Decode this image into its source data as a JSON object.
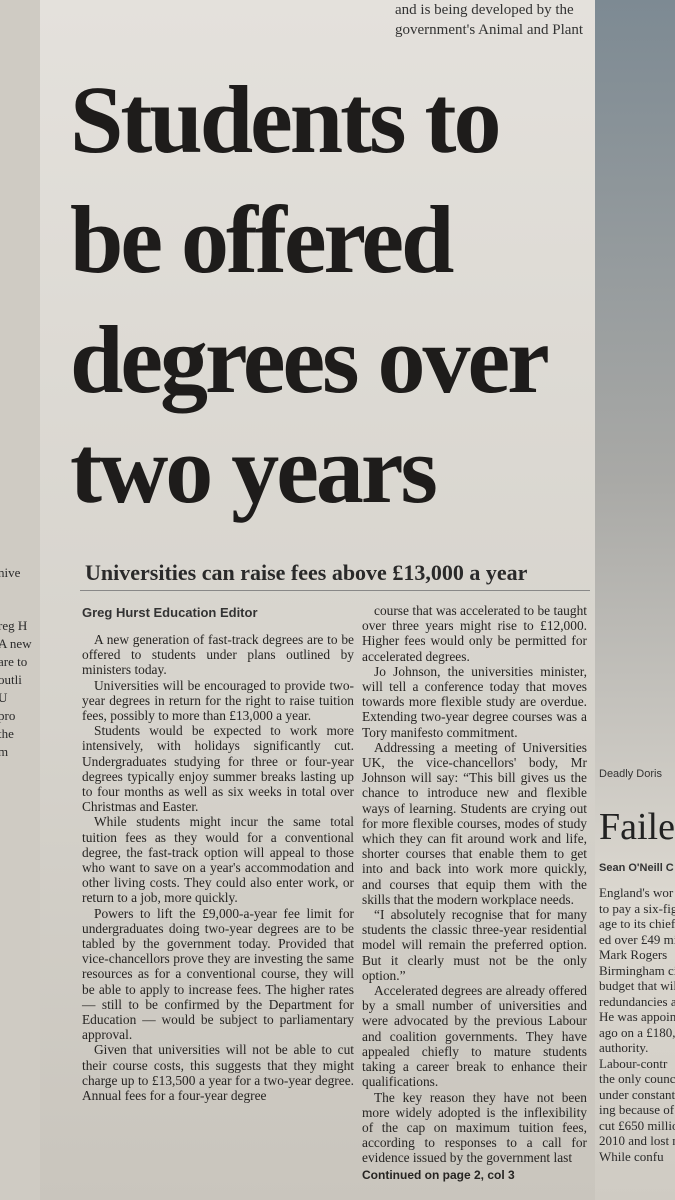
{
  "header": {
    "top_fragment": "and is being developed by the government's Animal and Plant",
    "headline": [
      "Students to",
      "be offered",
      "degrees over",
      "two years"
    ],
    "subhead": "Universities can raise fees above £13,000 a year",
    "byline": "Greg Hurst Education Editor"
  },
  "article": {
    "column1": [
      "A new generation of fast-track degrees are to be offered to students under plans outlined by ministers today.",
      "Universities will be encouraged to provide two-year degrees in return for the right to raise tuition fees, possibly to more than £13,000 a year.",
      "Students would be expected to work more intensively, with holidays significantly cut. Undergraduates studying for three or four-year degrees typically enjoy summer breaks lasting up to four months as well as six weeks in total over Christmas and Easter.",
      "While students might incur the same total tuition fees as they would for a conventional degree, the fast-track option will appeal to those who want to save on a year's accommodation and other living costs. They could also enter work, or return to a job, more quickly.",
      "Powers to lift the £9,000-a-year fee limit for undergraduates doing two-year degrees are to be tabled by the government today. Provided that vice-chancellors prove they are investing the same resources as for a conventional course, they will be able to apply to increase fees. The higher rates — still to be confirmed by the Department for Education — would be subject to parliamentary approval.",
      "Given that universities will not be able to cut their course costs, this suggests that they might charge up to £13,500 a year for a two-year degree. Annual fees for a four-year degree"
    ],
    "column2": [
      "course that was accelerated to be taught over three years might rise to £12,000. Higher fees would only be permitted for accelerated degrees.",
      "Jo Johnson, the universities minister, will tell a conference today that moves towards more flexible study are overdue. Extending two-year degree courses was a Tory manifesto commitment.",
      "Addressing a meeting of Universities UK, the vice-chancellors' body, Mr Johnson will say: “This bill gives us the chance to introduce new and flexible ways of learning. Students are crying out for more flexible courses, modes of study which they can fit around work and life, shorter courses that enable them to get into and back into work more quickly, and courses that equip them with the skills that the modern workplace needs.",
      "“I absolutely recognise that for many students the classic three-year residential model will remain the preferred option. But it clearly must not be the only option.”",
      "Accelerated degrees are already offered by a small number of universities and were advocated by the previous Labour and coalition governments. They have appealed chiefly to mature students taking a career break to enhance their qualifications.",
      "The key reason they have not been more widely adopted is the inflexibility of the cap on maximum tuition fees, according to responses to a call for evidence issued by the government last"
    ],
    "continued": "Continued on page 2, col 3"
  },
  "side": {
    "caption": "Deadly Doris",
    "headline": "Faile",
    "byline": "Sean O'Neill C",
    "lines": [
      "England's wor",
      "to pay a six-fig",
      "age to its chief e",
      "ed over £49 mil",
      "Mark Rogers",
      "Birmingham cit",
      "budget that wil",
      "redundancies a",
      "He was appoint",
      "ago on a £180,0",
      "authority.",
      "Labour-contr",
      "the only counc",
      "under constant",
      "ing because of p",
      "cut £650 millio",
      "2010 and lost r",
      "While confu"
    ]
  },
  "left_fragments": [
    "nive",
    "reg H",
    "A new",
    "are to",
    "outli",
    "U",
    "pro",
    "the",
    "m"
  ]
}
